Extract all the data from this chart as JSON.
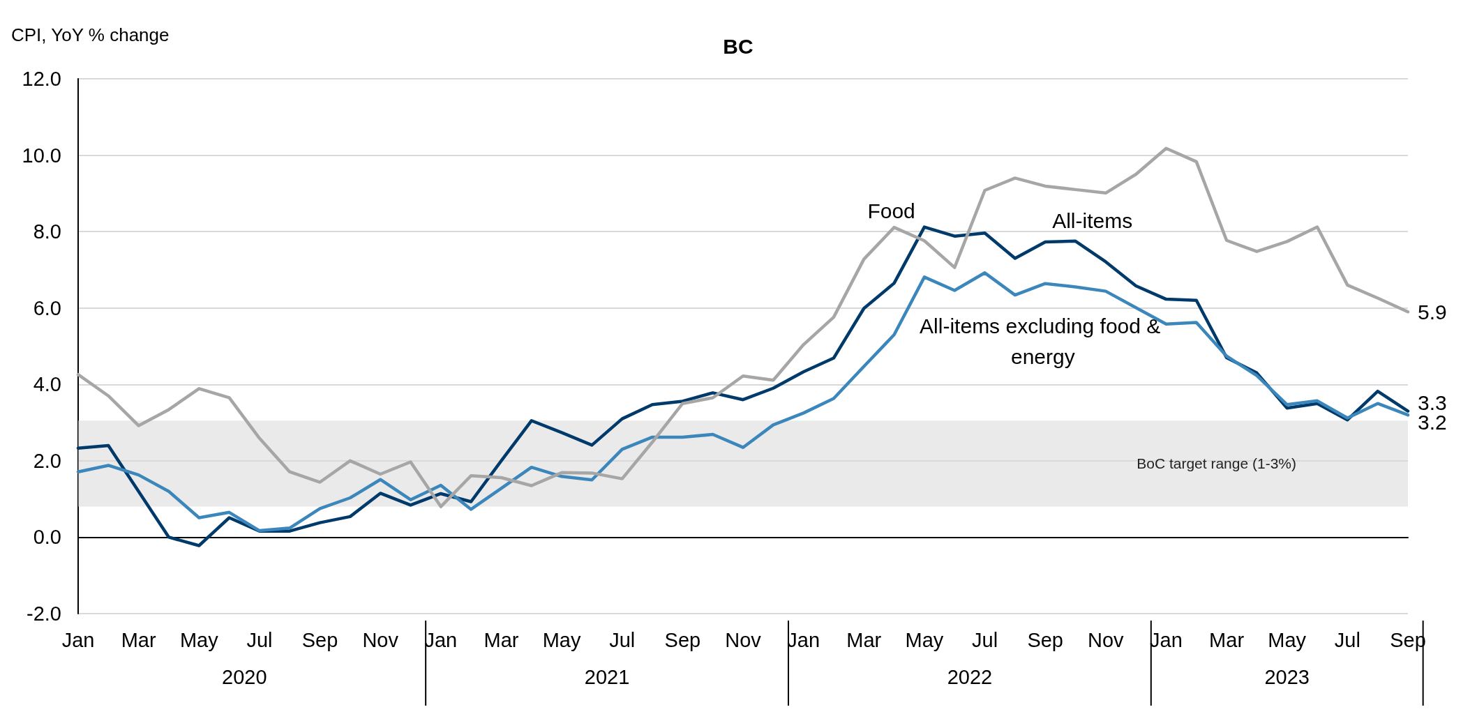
{
  "chart_data": {
    "type": "line",
    "title": "BC",
    "ylabel": "CPI, YoY % change",
    "x": [
      "2020-01",
      "2020-02",
      "2020-03",
      "2020-04",
      "2020-05",
      "2020-06",
      "2020-07",
      "2020-08",
      "2020-09",
      "2020-10",
      "2020-11",
      "2020-12",
      "2021-01",
      "2021-02",
      "2021-03",
      "2021-04",
      "2021-05",
      "2021-06",
      "2021-07",
      "2021-08",
      "2021-09",
      "2021-10",
      "2021-11",
      "2021-12",
      "2022-01",
      "2022-02",
      "2022-03",
      "2022-04",
      "2022-05",
      "2022-06",
      "2022-07",
      "2022-08",
      "2022-09",
      "2022-10",
      "2022-11",
      "2022-12",
      "2023-01",
      "2023-02",
      "2023-03",
      "2023-04",
      "2023-05",
      "2023-06",
      "2023-07",
      "2023-08",
      "2023-09"
    ],
    "xlim": [
      "2020-01",
      "2023-09"
    ],
    "xticks": [
      {
        "value": "2020-01",
        "label": "Jan"
      },
      {
        "value": "2020-03",
        "label": "Mar"
      },
      {
        "value": "2020-05",
        "label": "May"
      },
      {
        "value": "2020-07",
        "label": "Jul"
      },
      {
        "value": "2020-09",
        "label": "Sep"
      },
      {
        "value": "2020-11",
        "label": "Nov"
      },
      {
        "value": "2021-01",
        "label": "Jan"
      },
      {
        "value": "2021-03",
        "label": "Mar"
      },
      {
        "value": "2021-05",
        "label": "May"
      },
      {
        "value": "2021-07",
        "label": "Jul"
      },
      {
        "value": "2021-09",
        "label": "Sep"
      },
      {
        "value": "2021-11",
        "label": "Nov"
      },
      {
        "value": "2022-01",
        "label": "Jan"
      },
      {
        "value": "2022-03",
        "label": "Mar"
      },
      {
        "value": "2022-05",
        "label": "May"
      },
      {
        "value": "2022-07",
        "label": "Jul"
      },
      {
        "value": "2022-09",
        "label": "Sep"
      },
      {
        "value": "2022-11",
        "label": "Nov"
      },
      {
        "value": "2023-01",
        "label": "Jan"
      },
      {
        "value": "2023-03",
        "label": "Mar"
      },
      {
        "value": "2023-05",
        "label": "May"
      },
      {
        "value": "2023-07",
        "label": "Jul"
      },
      {
        "value": "2023-09",
        "label": "Sep"
      }
    ],
    "series": [
      {
        "name": "All-items",
        "color": "#003a6b",
        "values": [
          2.33,
          2.4,
          1.2,
          0.0,
          -0.22,
          0.51,
          0.16,
          0.16,
          0.38,
          0.54,
          1.15,
          0.84,
          1.14,
          0.93,
          2.0,
          3.05,
          2.74,
          2.41,
          3.1,
          3.47,
          3.56,
          3.78,
          3.6,
          3.9,
          4.33,
          4.69,
          5.99,
          6.65,
          8.12,
          7.88,
          7.96,
          7.3,
          7.73,
          7.75,
          7.21,
          6.58,
          6.23,
          6.2,
          4.7,
          4.3,
          3.38,
          3.5,
          3.07,
          3.82,
          3.3
        ],
        "value_labels": [
          null,
          null,
          null,
          null,
          null,
          null,
          null,
          null,
          null,
          null,
          null,
          null,
          null,
          null,
          null,
          null,
          null,
          null,
          null,
          null,
          null,
          null,
          null,
          null,
          null,
          null,
          null,
          null,
          null,
          null,
          null,
          null,
          null,
          null,
          null,
          null,
          null,
          null,
          null,
          null,
          null,
          null,
          null,
          null,
          "3.3"
        ]
      },
      {
        "name": "All-items excluding food & energy",
        "color": "#3b87bc",
        "values": [
          1.71,
          1.88,
          1.63,
          1.2,
          0.51,
          0.65,
          0.17,
          0.24,
          0.75,
          1.03,
          1.51,
          0.98,
          1.36,
          0.73,
          1.28,
          1.83,
          1.59,
          1.5,
          2.3,
          2.62,
          2.62,
          2.69,
          2.35,
          2.94,
          3.25,
          3.63,
          4.47,
          5.3,
          6.81,
          6.46,
          6.92,
          6.34,
          6.64,
          6.55,
          6.44,
          6.01,
          5.58,
          5.62,
          4.74,
          4.23,
          3.47,
          3.57,
          3.12,
          3.5,
          3.2
        ],
        "value_labels": [
          null,
          null,
          null,
          null,
          null,
          null,
          null,
          null,
          null,
          null,
          null,
          null,
          null,
          null,
          null,
          null,
          null,
          null,
          null,
          null,
          null,
          null,
          null,
          null,
          null,
          null,
          null,
          null,
          null,
          null,
          null,
          null,
          null,
          null,
          null,
          null,
          null,
          null,
          null,
          null,
          null,
          null,
          null,
          null,
          "3.2"
        ]
      },
      {
        "name": "Food",
        "color": "#a6a6a6",
        "values": [
          4.26,
          3.7,
          2.92,
          3.34,
          3.89,
          3.65,
          2.59,
          1.71,
          1.44,
          2.0,
          1.65,
          1.97,
          0.8,
          1.61,
          1.56,
          1.35,
          1.69,
          1.68,
          1.53,
          2.49,
          3.5,
          3.65,
          4.22,
          4.11,
          5.04,
          5.76,
          7.28,
          8.11,
          7.76,
          7.06,
          9.08,
          9.4,
          9.19,
          9.1,
          9.01,
          9.5,
          10.18,
          9.83,
          7.77,
          7.48,
          7.74,
          8.12,
          6.6,
          6.26,
          5.9
        ],
        "value_labels": [
          null,
          null,
          null,
          null,
          null,
          null,
          null,
          null,
          null,
          null,
          null,
          null,
          null,
          null,
          null,
          null,
          null,
          null,
          null,
          null,
          null,
          null,
          null,
          null,
          null,
          null,
          null,
          null,
          null,
          null,
          null,
          null,
          null,
          null,
          null,
          null,
          null,
          null,
          null,
          null,
          null,
          null,
          null,
          null,
          "5.9"
        ]
      }
    ],
    "ylim": [
      -2,
      12
    ],
    "yticks": [
      {
        "value": -2,
        "label": "-2.0"
      },
      {
        "value": 0,
        "label": "0.0"
      },
      {
        "value": 2,
        "label": "2.0"
      },
      {
        "value": 4,
        "label": "4.0"
      },
      {
        "value": 6,
        "label": "6.0"
      },
      {
        "value": 8,
        "label": "8.0"
      },
      {
        "value": 10,
        "label": "10.0"
      },
      {
        "value": 12,
        "label": "12.0"
      }
    ],
    "bands": [
      {
        "axis": "y",
        "from": 0.8,
        "to": 3.05,
        "label": "BoC target range (1-3%)",
        "color": "#d9d9d9"
      }
    ],
    "annotations": [
      "2020",
      "2021",
      "2022",
      "2023"
    ],
    "grid": "y",
    "legend": false,
    "marker": "none",
    "line_style": "solid"
  }
}
